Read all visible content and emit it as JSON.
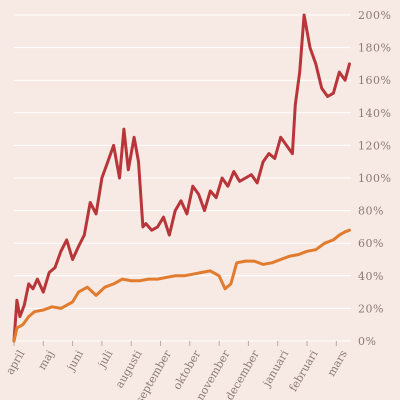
{
  "chart_data": {
    "type": "line",
    "y_ticks": [
      {
        "value": 0,
        "label": "0%"
      },
      {
        "value": 20,
        "label": "20%"
      },
      {
        "value": 40,
        "label": "40%"
      },
      {
        "value": 60,
        "label": "60%"
      },
      {
        "value": 80,
        "label": "80%"
      },
      {
        "value": 100,
        "label": "100%"
      },
      {
        "value": 120,
        "label": "120%"
      },
      {
        "value": 140,
        "label": "140%"
      },
      {
        "value": 160,
        "label": "160%"
      },
      {
        "value": 180,
        "label": "180%"
      },
      {
        "value": 200,
        "label": "200%"
      }
    ],
    "ylim": [
      0,
      200
    ],
    "x_range": [
      0,
      11.5
    ],
    "x_ticks": [
      {
        "value": 0,
        "label": "april"
      },
      {
        "value": 1,
        "label": "maj"
      },
      {
        "value": 2,
        "label": "juni"
      },
      {
        "value": 3,
        "label": "juli"
      },
      {
        "value": 4,
        "label": "augusti"
      },
      {
        "value": 5,
        "label": "september"
      },
      {
        "value": 6,
        "label": "oktober"
      },
      {
        "value": 7,
        "label": "november"
      },
      {
        "value": 8,
        "label": "december"
      },
      {
        "value": 9,
        "label": "januari"
      },
      {
        "value": 10,
        "label": "februari"
      },
      {
        "value": 11,
        "label": "mars"
      }
    ],
    "grid": true,
    "colors": {
      "red": "#b8353a",
      "orange": "#e17b2e",
      "grid": "#ffffff",
      "text": "#8a7a74"
    },
    "series": [
      {
        "color": "#b8353a",
        "x": [
          0,
          0.1,
          0.2,
          0.35,
          0.5,
          0.65,
          0.8,
          1.0,
          1.2,
          1.4,
          1.6,
          1.8,
          2.0,
          2.2,
          2.4,
          2.6,
          2.8,
          3.0,
          3.2,
          3.4,
          3.6,
          3.75,
          3.9,
          4.1,
          4.25,
          4.4,
          4.5,
          4.7,
          4.9,
          5.1,
          5.3,
          5.5,
          5.7,
          5.9,
          6.1,
          6.3,
          6.5,
          6.7,
          6.9,
          7.1,
          7.3,
          7.5,
          7.7,
          7.9,
          8.1,
          8.3,
          8.5,
          8.7,
          8.9,
          9.1,
          9.3,
          9.5,
          9.6,
          9.75,
          9.9,
          10.1,
          10.3,
          10.5,
          10.7,
          10.9,
          11.1,
          11.3,
          11.45
        ],
        "y": [
          0,
          25,
          15,
          22,
          35,
          32,
          38,
          30,
          42,
          45,
          55,
          62,
          50,
          58,
          65,
          85,
          78,
          100,
          110,
          120,
          100,
          130,
          105,
          125,
          110,
          70,
          72,
          68,
          70,
          76,
          65,
          80,
          86,
          78,
          95,
          90,
          80,
          92,
          88,
          100,
          95,
          104,
          98,
          100,
          102,
          97,
          110,
          115,
          112,
          125,
          120,
          115,
          145,
          165,
          200,
          180,
          170,
          155,
          150,
          152,
          165,
          160,
          170
        ]
      },
      {
        "color": "#e17b2e",
        "x": [
          0,
          0.1,
          0.3,
          0.5,
          0.7,
          1.0,
          1.3,
          1.6,
          2.0,
          2.2,
          2.5,
          2.8,
          3.1,
          3.4,
          3.7,
          4.0,
          4.3,
          4.6,
          4.9,
          5.2,
          5.5,
          5.8,
          6.1,
          6.4,
          6.7,
          7.0,
          7.2,
          7.4,
          7.6,
          7.9,
          8.2,
          8.5,
          8.8,
          9.1,
          9.4,
          9.7,
          10.0,
          10.3,
          10.6,
          10.9,
          11.1,
          11.3,
          11.45
        ],
        "y": [
          0,
          8,
          10,
          15,
          18,
          19,
          21,
          20,
          24,
          30,
          33,
          28,
          33,
          35,
          38,
          37,
          37,
          38,
          38,
          39,
          40,
          40,
          41,
          42,
          43,
          40,
          32,
          35,
          48,
          49,
          49,
          47,
          48,
          50,
          52,
          53,
          55,
          56,
          60,
          62,
          65,
          67,
          68
        ]
      }
    ]
  }
}
